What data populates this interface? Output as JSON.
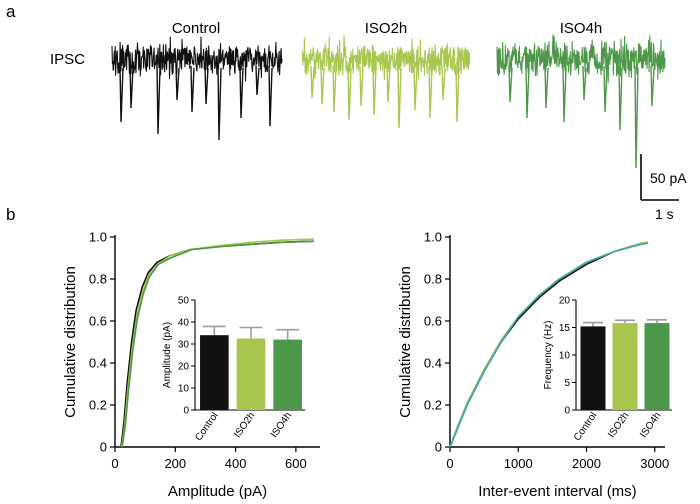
{
  "panel_a": {
    "letter": "a",
    "row_label": "IPSC",
    "conditions": [
      {
        "name": "Control",
        "color": "#111111",
        "events": [
          0.05,
          0.11,
          0.27,
          0.38,
          0.47,
          0.55,
          0.63,
          0.76,
          0.85,
          0.93
        ],
        "depths": [
          62,
          48,
          74,
          40,
          52,
          44,
          80,
          58,
          35,
          66
        ]
      },
      {
        "name": "ISO2h",
        "color": "#a8c74e",
        "events": [
          0.06,
          0.12,
          0.19,
          0.28,
          0.35,
          0.43,
          0.51,
          0.58,
          0.67,
          0.76,
          0.84,
          0.92
        ],
        "depths": [
          38,
          44,
          52,
          60,
          46,
          55,
          42,
          68,
          50,
          58,
          40,
          62
        ]
      },
      {
        "name": "ISO4h",
        "color": "#4d9848",
        "events": [
          0.08,
          0.18,
          0.29,
          0.4,
          0.52,
          0.64,
          0.73,
          0.83,
          0.92
        ],
        "depths": [
          42,
          58,
          48,
          62,
          40,
          52,
          70,
          108,
          46
        ]
      }
    ],
    "scale_bar": {
      "vertical_label": "50 pA",
      "horizontal_label": "1 s"
    }
  },
  "panel_b": {
    "letter": "b",
    "colors": {
      "Control": "#111111",
      "ISO2h": "#a8c74e",
      "ISO4h": "#4d9848",
      "ISO4h_alt": "#3aaab0"
    }
  },
  "chart_data": [
    {
      "id": "amplitude_cdf",
      "type": "line",
      "title": "",
      "xlabel": "Amplitude (pA)",
      "ylabel": "Cumulative distribution",
      "xlim": [
        0,
        680
      ],
      "ylim": [
        0,
        1.0
      ],
      "xticks": [
        "0",
        "200",
        "400",
        "600"
      ],
      "xtick_values": [
        0,
        200,
        400,
        600
      ],
      "yticks": [
        "0",
        "0.2",
        "0.4",
        "0.6",
        "0.8",
        "1.0"
      ],
      "ytick_values": [
        0,
        0.2,
        0.4,
        0.6,
        0.8,
        1.0
      ],
      "series": [
        {
          "name": "Control",
          "x": [
            20,
            30,
            40,
            55,
            70,
            90,
            110,
            140,
            180,
            250,
            350,
            450,
            550,
            660
          ],
          "y": [
            0,
            0.12,
            0.3,
            0.5,
            0.65,
            0.76,
            0.83,
            0.88,
            0.91,
            0.94,
            0.955,
            0.965,
            0.975,
            0.98
          ]
        },
        {
          "name": "ISO2h",
          "x": [
            22,
            32,
            42,
            57,
            72,
            92,
            112,
            142,
            182,
            252,
            352,
            452,
            552,
            660
          ],
          "y": [
            0,
            0.1,
            0.27,
            0.47,
            0.62,
            0.74,
            0.82,
            0.87,
            0.91,
            0.94,
            0.96,
            0.975,
            0.985,
            0.99
          ]
        },
        {
          "name": "ISO4h",
          "x": [
            24,
            34,
            44,
            59,
            74,
            94,
            114,
            144,
            184,
            254,
            354,
            454,
            554,
            660
          ],
          "y": [
            0,
            0.1,
            0.26,
            0.46,
            0.61,
            0.73,
            0.81,
            0.87,
            0.9,
            0.94,
            0.955,
            0.965,
            0.975,
            0.98
          ]
        }
      ],
      "inset": {
        "type": "bar",
        "ylabel": "Amplitude (pA)",
        "categories": [
          "Control",
          "ISO2h",
          "ISO4h"
        ],
        "values": [
          34,
          32.5,
          32
        ],
        "errors": [
          4,
          5,
          4.5
        ],
        "ylim": [
          0,
          50
        ],
        "yticks": [
          "0",
          "10",
          "20",
          "30",
          "40",
          "50"
        ],
        "ytick_values": [
          0,
          10,
          20,
          30,
          40,
          50
        ]
      }
    },
    {
      "id": "interval_cdf",
      "type": "line",
      "title": "",
      "xlabel": "Inter-event interval (ms)",
      "ylabel": "Cumulative distribution",
      "xlim": [
        0,
        3150
      ],
      "ylim": [
        0,
        1.0
      ],
      "xticks": [
        "0",
        "1000",
        "2000",
        "3000"
      ],
      "xtick_values": [
        0,
        1000,
        2000,
        3000
      ],
      "yticks": [
        "0",
        "0.2",
        "0.4",
        "0.6",
        "0.8",
        "1.0"
      ],
      "ytick_values": [
        0,
        0.2,
        0.4,
        0.6,
        0.8,
        1.0
      ],
      "series": [
        {
          "name": "Control",
          "x": [
            0,
            100,
            250,
            500,
            750,
            1000,
            1300,
            1600,
            2000,
            2400,
            2800,
            2900
          ],
          "y": [
            0,
            0.08,
            0.2,
            0.36,
            0.5,
            0.61,
            0.71,
            0.79,
            0.87,
            0.93,
            0.97,
            0.975
          ]
        },
        {
          "name": "ISO2h",
          "x": [
            0,
            100,
            250,
            500,
            750,
            1000,
            1300,
            1600,
            2000,
            2400,
            2800,
            2900
          ],
          "y": [
            0,
            0.09,
            0.21,
            0.37,
            0.51,
            0.62,
            0.72,
            0.8,
            0.88,
            0.93,
            0.97,
            0.975
          ]
        },
        {
          "name": "ISO4h",
          "x": [
            0,
            100,
            250,
            500,
            750,
            1000,
            1300,
            1600,
            2000,
            2400,
            2800,
            2900
          ],
          "y": [
            0,
            0.08,
            0.2,
            0.36,
            0.5,
            0.62,
            0.72,
            0.8,
            0.88,
            0.93,
            0.965,
            0.97
          ]
        }
      ],
      "inset": {
        "type": "bar",
        "ylabel": "Frequency (Hz)",
        "categories": [
          "Control",
          "ISO2h",
          "ISO4h"
        ],
        "values": [
          15.2,
          15.8,
          15.8
        ],
        "errors": [
          0.7,
          0.5,
          0.6
        ],
        "ylim": [
          0,
          20
        ],
        "yticks": [
          "0",
          "5",
          "10",
          "15",
          "20"
        ],
        "ytick_values": [
          0,
          5,
          10,
          15,
          20
        ]
      }
    }
  ]
}
